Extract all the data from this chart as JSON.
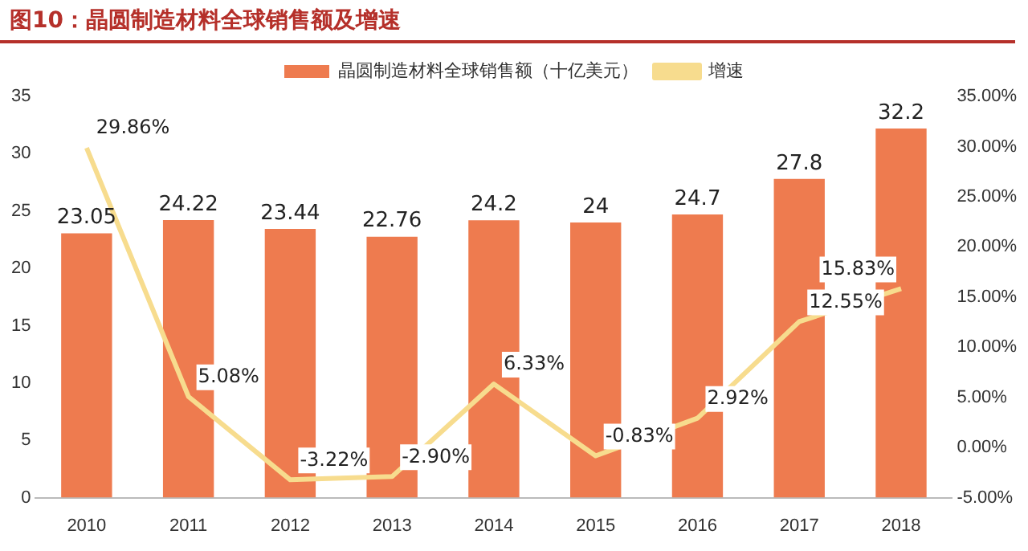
{
  "chart_data": {
    "type": "bar",
    "title": "图10：晶圆制造材料全球销售额及增速",
    "categories": [
      "2010",
      "2011",
      "2012",
      "2013",
      "2014",
      "2015",
      "2016",
      "2017",
      "2018"
    ],
    "series": [
      {
        "name": "晶圆制造材料全球销售额（十亿美元）",
        "color": "#ee7b4f",
        "values": [
          23.05,
          24.22,
          23.44,
          22.76,
          24.2,
          24,
          24.7,
          27.8,
          32.2
        ],
        "value_labels": [
          "23.05",
          "24.22",
          "23.44",
          "22.76",
          "24.2",
          "24",
          "24.7",
          "27.8",
          "32.2"
        ]
      },
      {
        "name": "增速",
        "type": "line",
        "axis": "y2",
        "color": "#f7dc8e",
        "values": [
          29.86,
          5.08,
          -3.22,
          -2.9,
          6.33,
          -0.83,
          2.92,
          12.55,
          15.83
        ],
        "value_labels": [
          "29.86%",
          "5.08%",
          "-3.22%",
          "-2.90%",
          "6.33%",
          "-0.83%",
          "2.92%",
          "12.55%",
          "15.83%"
        ]
      }
    ],
    "ylim": [
      0,
      35
    ],
    "yticks": [
      0,
      5,
      10,
      15,
      20,
      25,
      30,
      35
    ],
    "y2lim": [
      -5,
      35
    ],
    "y2ticks": [
      {
        "value": -5,
        "label": "-5.00%"
      },
      {
        "value": 0,
        "label": "0.00%"
      },
      {
        "value": 5,
        "label": "5.00%"
      },
      {
        "value": 10,
        "label": "10.00%"
      },
      {
        "value": 15,
        "label": "15.00%"
      },
      {
        "value": 20,
        "label": "20.00%"
      },
      {
        "value": 25,
        "label": "25.00%"
      },
      {
        "value": 30,
        "label": "30.00%"
      },
      {
        "value": 35,
        "label": "35.00%"
      }
    ],
    "legend": "top",
    "grid": false,
    "marker": "none"
  }
}
